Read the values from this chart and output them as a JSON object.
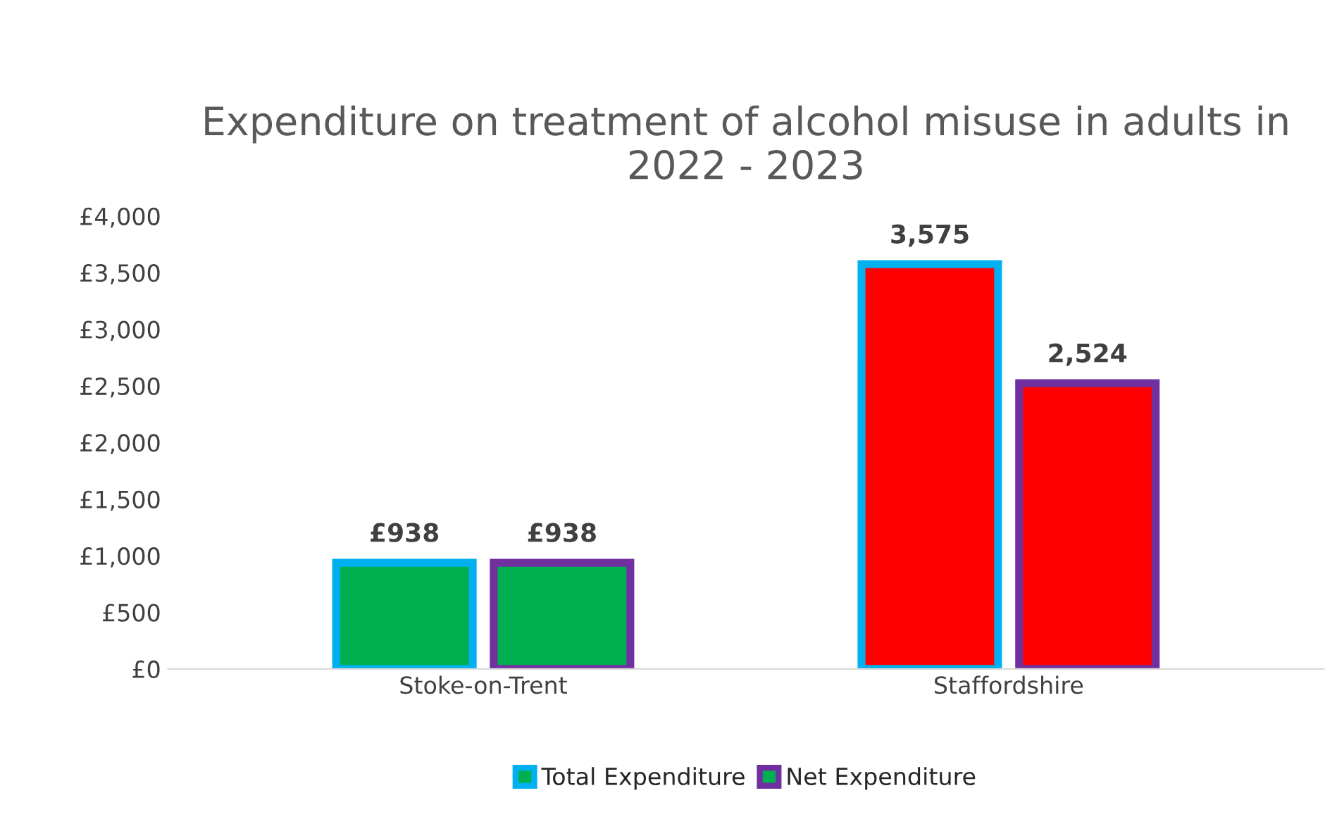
{
  "chart_data": {
    "type": "bar",
    "title": "Expenditure on treatment of alcohol misuse in adults in 2022 - 2023",
    "categories": [
      "Stoke-on-Trent",
      "Staffordshire"
    ],
    "series": [
      {
        "name": "Total Expenditure",
        "color": "#00b0f0",
        "colors": [
          "#00b050",
          "#ff0000"
        ],
        "values": [
          938,
          3575
        ],
        "value_labels": [
          "£938",
          "3,575"
        ]
      },
      {
        "name": "Net Expenditure",
        "color": "#7030a0",
        "colors": [
          "#00b050",
          "#ff0000"
        ],
        "values": [
          938,
          2524
        ],
        "value_labels": [
          "£938",
          "2,524"
        ]
      }
    ],
    "ylim": [
      0,
      4000
    ],
    "yticks": [
      {
        "value": 0,
        "label": "£0"
      },
      {
        "value": 500,
        "label": "£500"
      },
      {
        "value": 1000,
        "label": "£1,000"
      },
      {
        "value": 1500,
        "label": "£1,500"
      },
      {
        "value": 2000,
        "label": "£2,000"
      },
      {
        "value": 2500,
        "label": "£2,500"
      },
      {
        "value": 3000,
        "label": "£3,000"
      },
      {
        "value": 3500,
        "label": "£3,500"
      },
      {
        "value": 4000,
        "label": "£4,000"
      }
    ],
    "grid": false,
    "legend": "bottom"
  }
}
